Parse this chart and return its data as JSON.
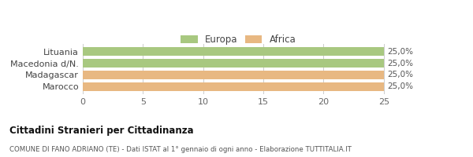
{
  "categories": [
    "Lituania",
    "Macedonia d/N.",
    "Madagascar",
    "Marocco"
  ],
  "values": [
    25.0,
    25.0,
    25.0,
    25.0
  ],
  "bar_colors": [
    "#a8c880",
    "#a8c880",
    "#e8b882",
    "#e8b882"
  ],
  "legend_labels": [
    "Europa",
    "Africa"
  ],
  "legend_colors": [
    "#a8c880",
    "#e8b882"
  ],
  "bar_labels": [
    "25,0%",
    "25,0%",
    "25,0%",
    "25,0%"
  ],
  "xlim": [
    0,
    27.5
  ],
  "xticks": [
    0,
    5,
    10,
    15,
    20,
    25
  ],
  "title_main": "Cittadini Stranieri per Cittadinanza",
  "title_sub": "COMUNE DI FANO ADRIANO (TE) - Dati ISTAT al 1° gennaio di ogni anno - Elaborazione TUTTITALIA.IT",
  "background_color": "#ffffff",
  "bar_height": 0.75,
  "grid_color": "#cccccc"
}
